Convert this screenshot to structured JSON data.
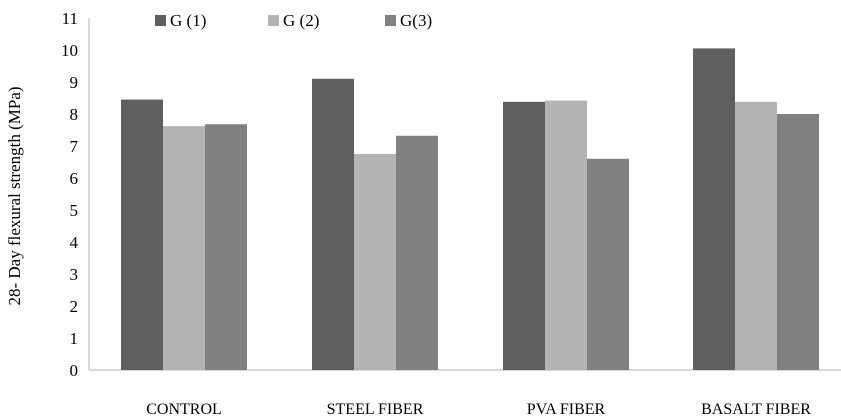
{
  "chart_data": {
    "type": "bar",
    "title": "",
    "xlabel": "",
    "ylabel": "28- Day flexural strength (MPa)",
    "ylim": [
      0,
      11
    ],
    "yticks": [
      0,
      1,
      2,
      3,
      4,
      5,
      6,
      7,
      8,
      9,
      10,
      11
    ],
    "grid": false,
    "legend_position": "top-left",
    "categories": [
      "CONTROL",
      "STEEL FIBER",
      "PVA FIBER",
      "BASALT FIBER"
    ],
    "series": [
      {
        "name": "G (1)",
        "color": "#5f5f5f",
        "values": [
          8.45,
          9.1,
          8.38,
          10.05
        ]
      },
      {
        "name": "G (2)",
        "color": "#b3b3b3",
        "values": [
          7.62,
          6.75,
          8.42,
          8.38
        ]
      },
      {
        "name": "G(3)",
        "color": "#808080",
        "values": [
          7.68,
          7.32,
          6.6,
          8.0
        ]
      }
    ]
  }
}
